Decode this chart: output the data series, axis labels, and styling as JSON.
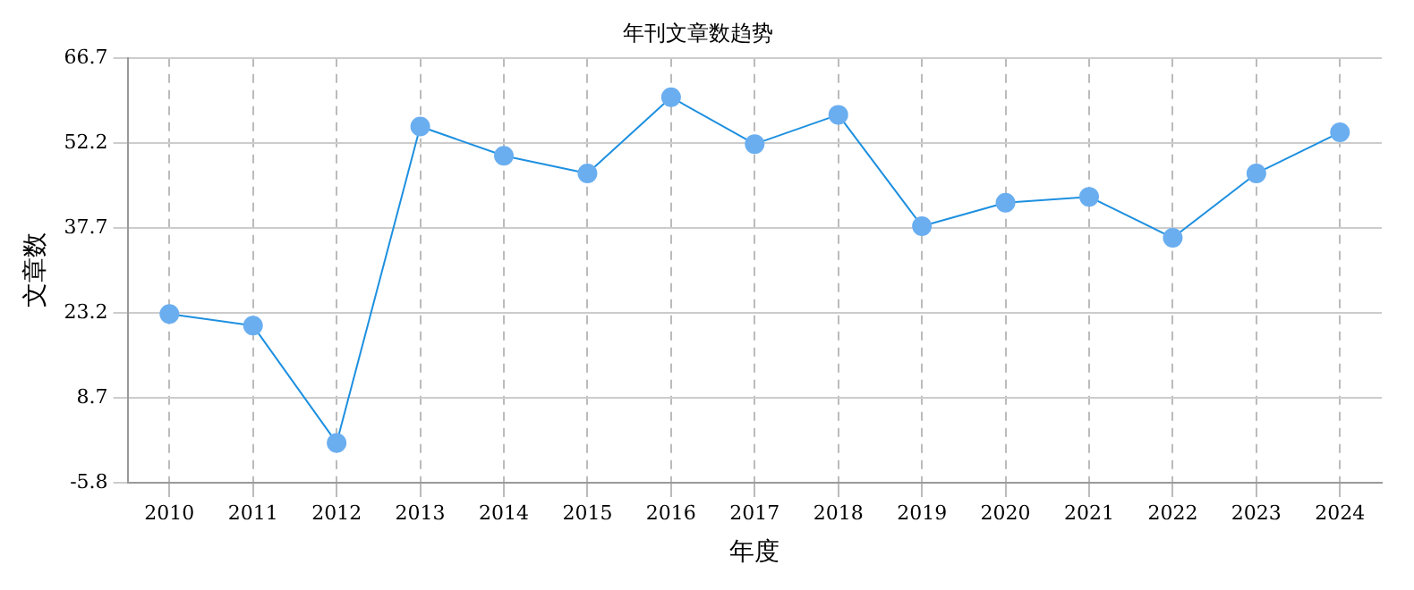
{
  "chart_data": {
    "type": "line",
    "title": "年刊文章数趋势",
    "xlabel": "年度",
    "ylabel": "文章数",
    "categories": [
      "2010",
      "2011",
      "2012",
      "2013",
      "2014",
      "2015",
      "2016",
      "2017",
      "2018",
      "2019",
      "2020",
      "2021",
      "2022",
      "2023",
      "2024"
    ],
    "series": [
      {
        "color": "#1e90e0",
        "values": [
          23,
          21,
          1,
          55,
          50,
          47,
          60,
          52,
          57,
          38,
          42,
          43,
          36,
          47,
          54
        ]
      }
    ],
    "ylim": [
      -5.8,
      66.7
    ],
    "yticks": [
      -5.8,
      8.7,
      23.2,
      37.7,
      52.2,
      66.7
    ],
    "grid": true,
    "marker": "circle",
    "line_style": "solid",
    "legend": false
  }
}
